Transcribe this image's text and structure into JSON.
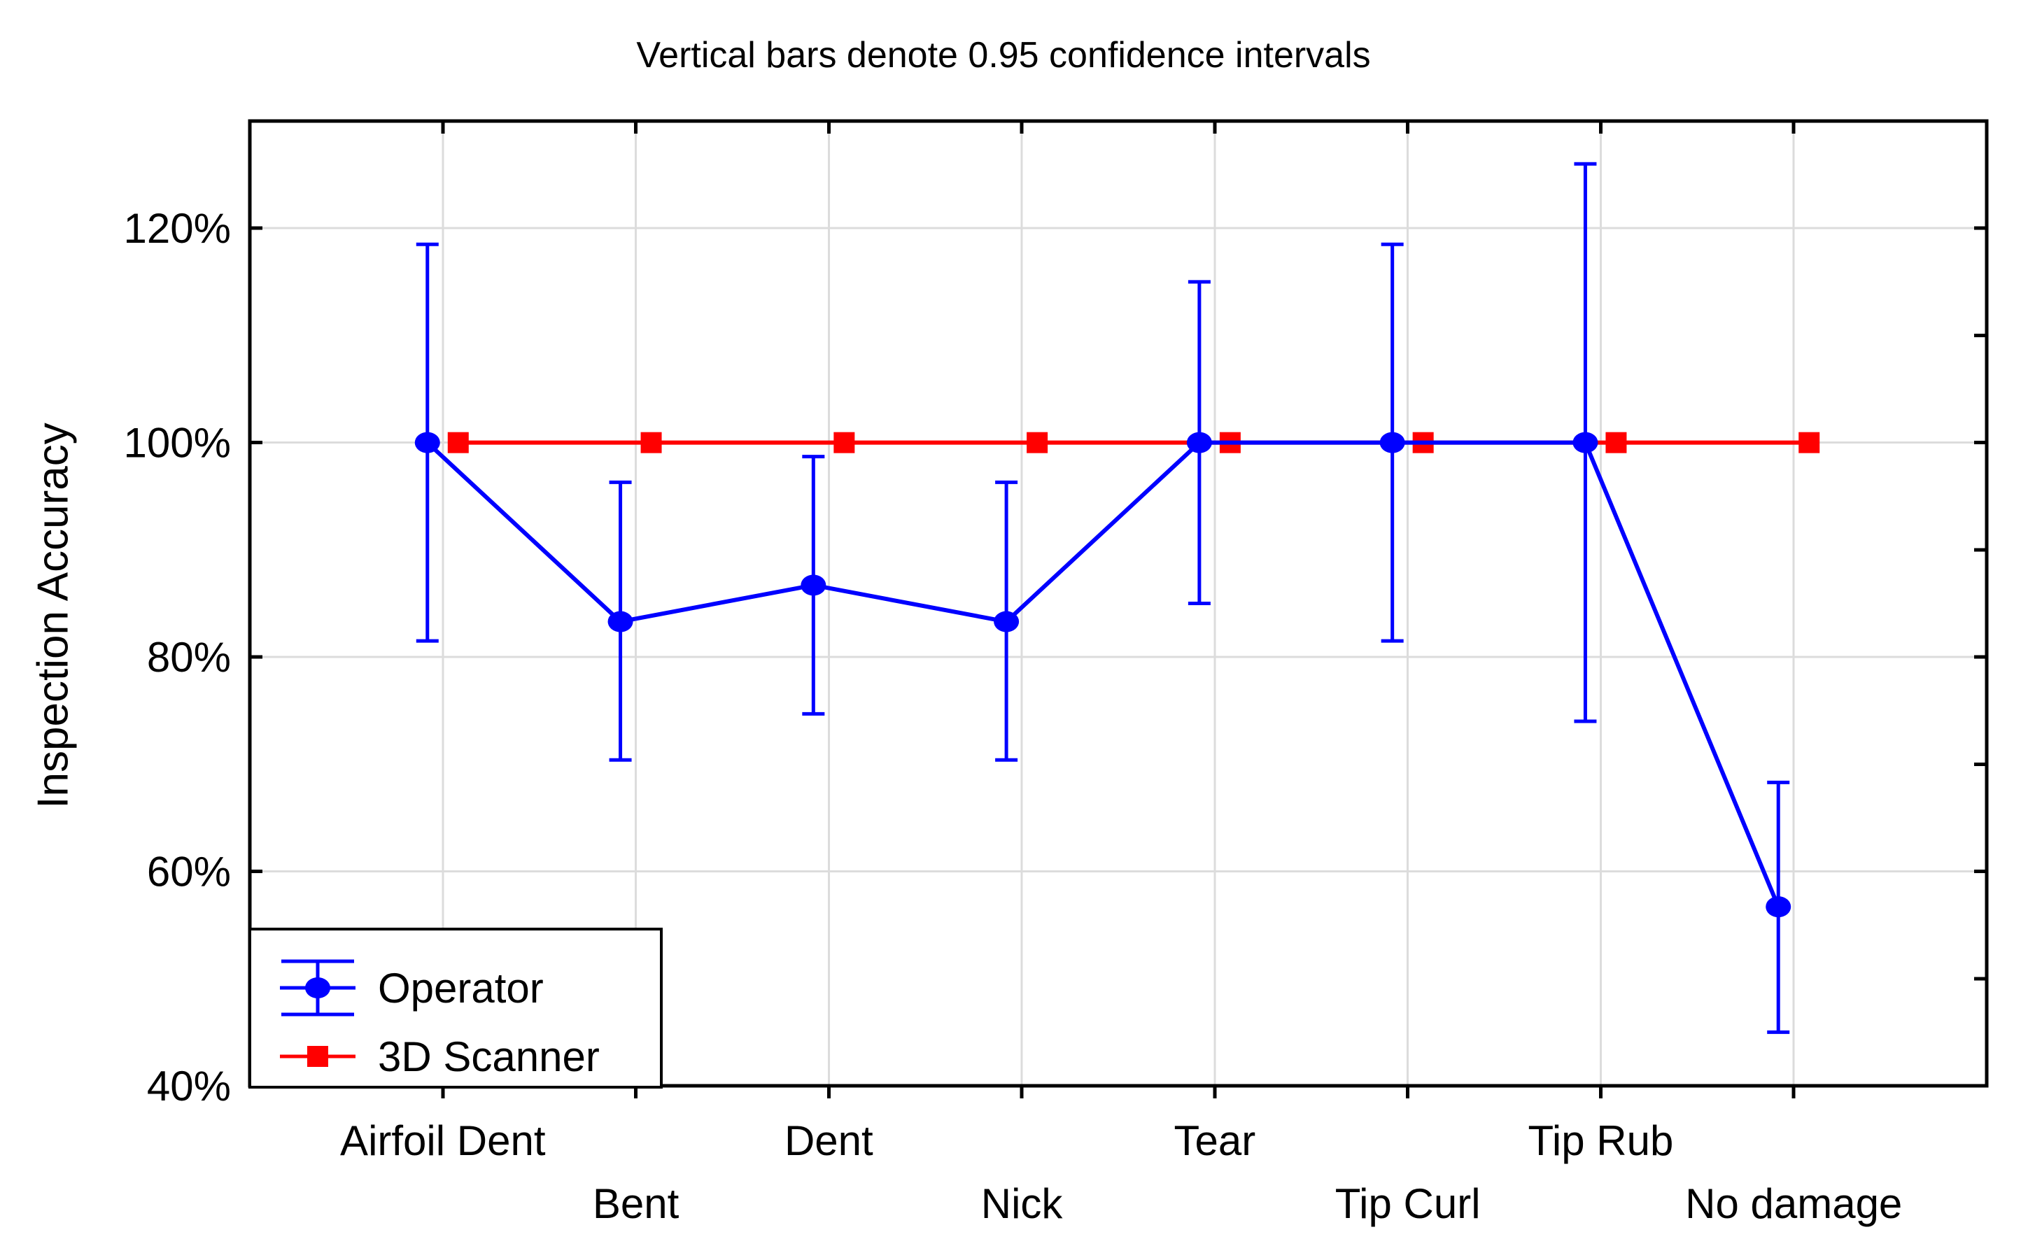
{
  "title": "Vertical bars denote 0.95 confidence intervals",
  "y_axis": {
    "label": "Inspection Accuracy",
    "tick_labels": [
      "120%",
      "100%",
      "80%",
      "60%",
      "40%"
    ],
    "tick_values": [
      120,
      100,
      80,
      60,
      40
    ]
  },
  "x_axis": {
    "categories": [
      "Airfoil Dent",
      "Bent",
      "Dent",
      "Nick",
      "Tear",
      "Tip Curl",
      "Tip Rub",
      "No damage"
    ]
  },
  "legend": {
    "items": [
      {
        "label": "Operator",
        "marker": "circle-with-error-bar",
        "color": "#0000FF"
      },
      {
        "label": "3D Scanner",
        "marker": "square",
        "color": "#FF0000"
      }
    ]
  },
  "colors": {
    "operator": "#0000FF",
    "scanner": "#FF0000",
    "grid": "#DCDCDC",
    "axis": "#000000",
    "background": "#FFFFFF"
  },
  "chart_data": {
    "type": "line",
    "title": "Vertical bars denote 0.95 confidence intervals",
    "ylabel": "Inspection Accuracy",
    "ylim": [
      40,
      130
    ],
    "y_major_step": 20,
    "y_minor_step": 10,
    "grid": true,
    "legend_position": "bottom-left",
    "error_bars": "0.95 confidence intervals",
    "categories": [
      "Airfoil Dent",
      "Bent",
      "Dent",
      "Nick",
      "Tear",
      "Tip Curl",
      "Tip Rub",
      "No damage"
    ],
    "series": [
      {
        "name": "Operator",
        "color": "#0000FF",
        "marker": "circle",
        "values": [
          100,
          83.3,
          86.7,
          83.3,
          100,
          100,
          100,
          56.7
        ],
        "ci_low": [
          81.5,
          70.4,
          74.7,
          70.4,
          85.0,
          81.5,
          74.0,
          45.0
        ],
        "ci_high": [
          118.5,
          96.3,
          98.7,
          96.3,
          115.0,
          118.5,
          126.0,
          68.3
        ]
      },
      {
        "name": "3D Scanner",
        "color": "#FF0000",
        "marker": "square",
        "values": [
          100,
          100,
          100,
          100,
          100,
          100,
          100,
          100
        ]
      }
    ]
  }
}
